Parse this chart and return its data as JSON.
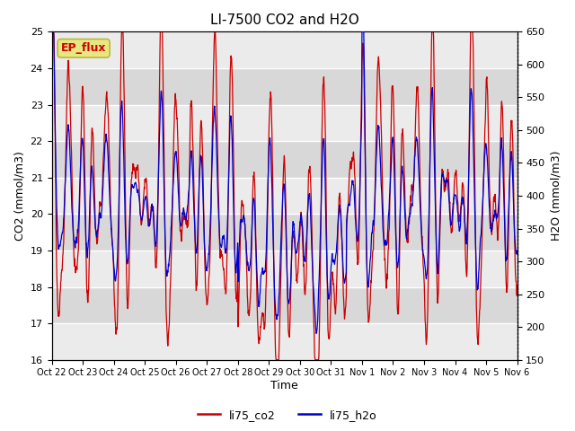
{
  "title": "LI-7500 CO2 and H2O",
  "xlabel": "Time",
  "ylabel_left": "CO2 (mmol/m3)",
  "ylabel_right": "H2O (mmol/m3)",
  "ylim_left": [
    16.0,
    25.0
  ],
  "ylim_right": [
    150,
    650
  ],
  "xtick_labels": [
    "Oct 22",
    "Oct 23",
    "Oct 24",
    "Oct 25",
    "Oct 26",
    "Oct 27",
    "Oct 28",
    "Oct 29",
    "Oct 30",
    "Oct 31",
    "Nov 1",
    "Nov 2",
    "Nov 3",
    "Nov 4",
    "Nov 5",
    "Nov 6"
  ],
  "co2_color": "#cc0000",
  "h2o_color": "#0000cc",
  "background_color": "#ffffff",
  "plot_bg_light": "#e8e8e8",
  "plot_bg_dark": "#d4d4d4",
  "annotation_text": "EP_flux",
  "annotation_color": "#cc0000",
  "annotation_bg": "#e8e880",
  "annotation_edge": "#b8b840",
  "legend_co2": "li75_co2",
  "legend_h2o": "li75_h2o",
  "n_points": 1600,
  "n_days": 15
}
